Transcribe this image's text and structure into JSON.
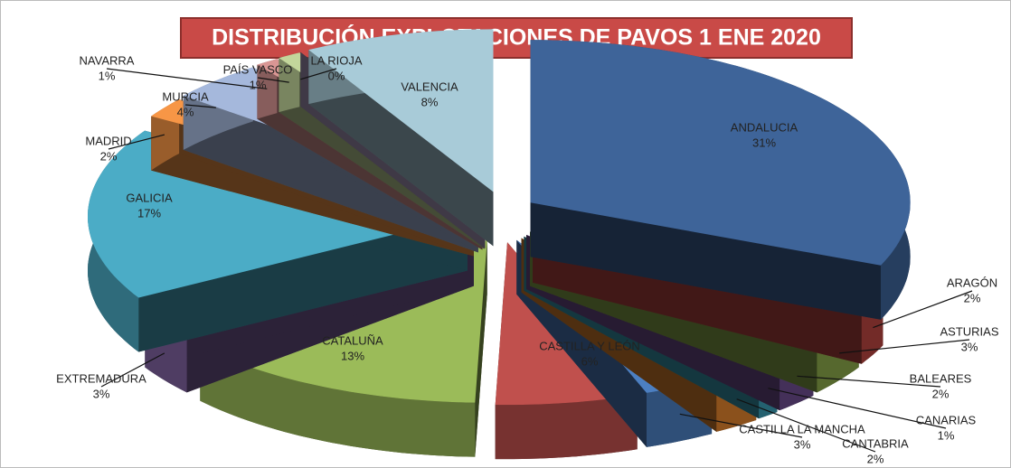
{
  "chart_data": {
    "type": "pie",
    "title": "DISTRIBUCIÓN EXPLOTACIONES DE PAVOS 1 ENE 2020",
    "categories": [
      "ANDALUCIA",
      "ARAGÓN",
      "ASTURIAS",
      "BALEARES",
      "CANARIAS",
      "CANTABRIA",
      "CASTILLA LA MANCHA",
      "CASTILLA Y LEÓN",
      "CATALUÑA",
      "EXTREMADURA",
      "GALICIA",
      "MADRID",
      "MURCIA",
      "NAVARRA",
      "PAÍS VASCO",
      "LA RIOJA",
      "VALENCIA"
    ],
    "values": [
      31,
      2,
      3,
      2,
      1,
      2,
      3,
      6,
      13,
      3,
      17,
      2,
      4,
      1,
      1,
      0,
      8
    ],
    "value_labels": [
      "31%",
      "2%",
      "3%",
      "2%",
      "1%",
      "2%",
      "3%",
      "6%",
      "13%",
      "3%",
      "17%",
      "2%",
      "4%",
      "1%",
      "1%",
      "0%",
      "8%"
    ],
    "colors": [
      "#3e6499",
      "#b94541",
      "#8aa84a",
      "#6e4d8f",
      "#3a9cb5",
      "#e0822d",
      "#4c7fc1",
      "#c0504d",
      "#9bbb59",
      "#7f62a0",
      "#4bacc6",
      "#f79646",
      "#a5b8dc",
      "#d99694",
      "#c3d69b",
      "#b3a2c7",
      "#a8cbd8"
    ]
  }
}
